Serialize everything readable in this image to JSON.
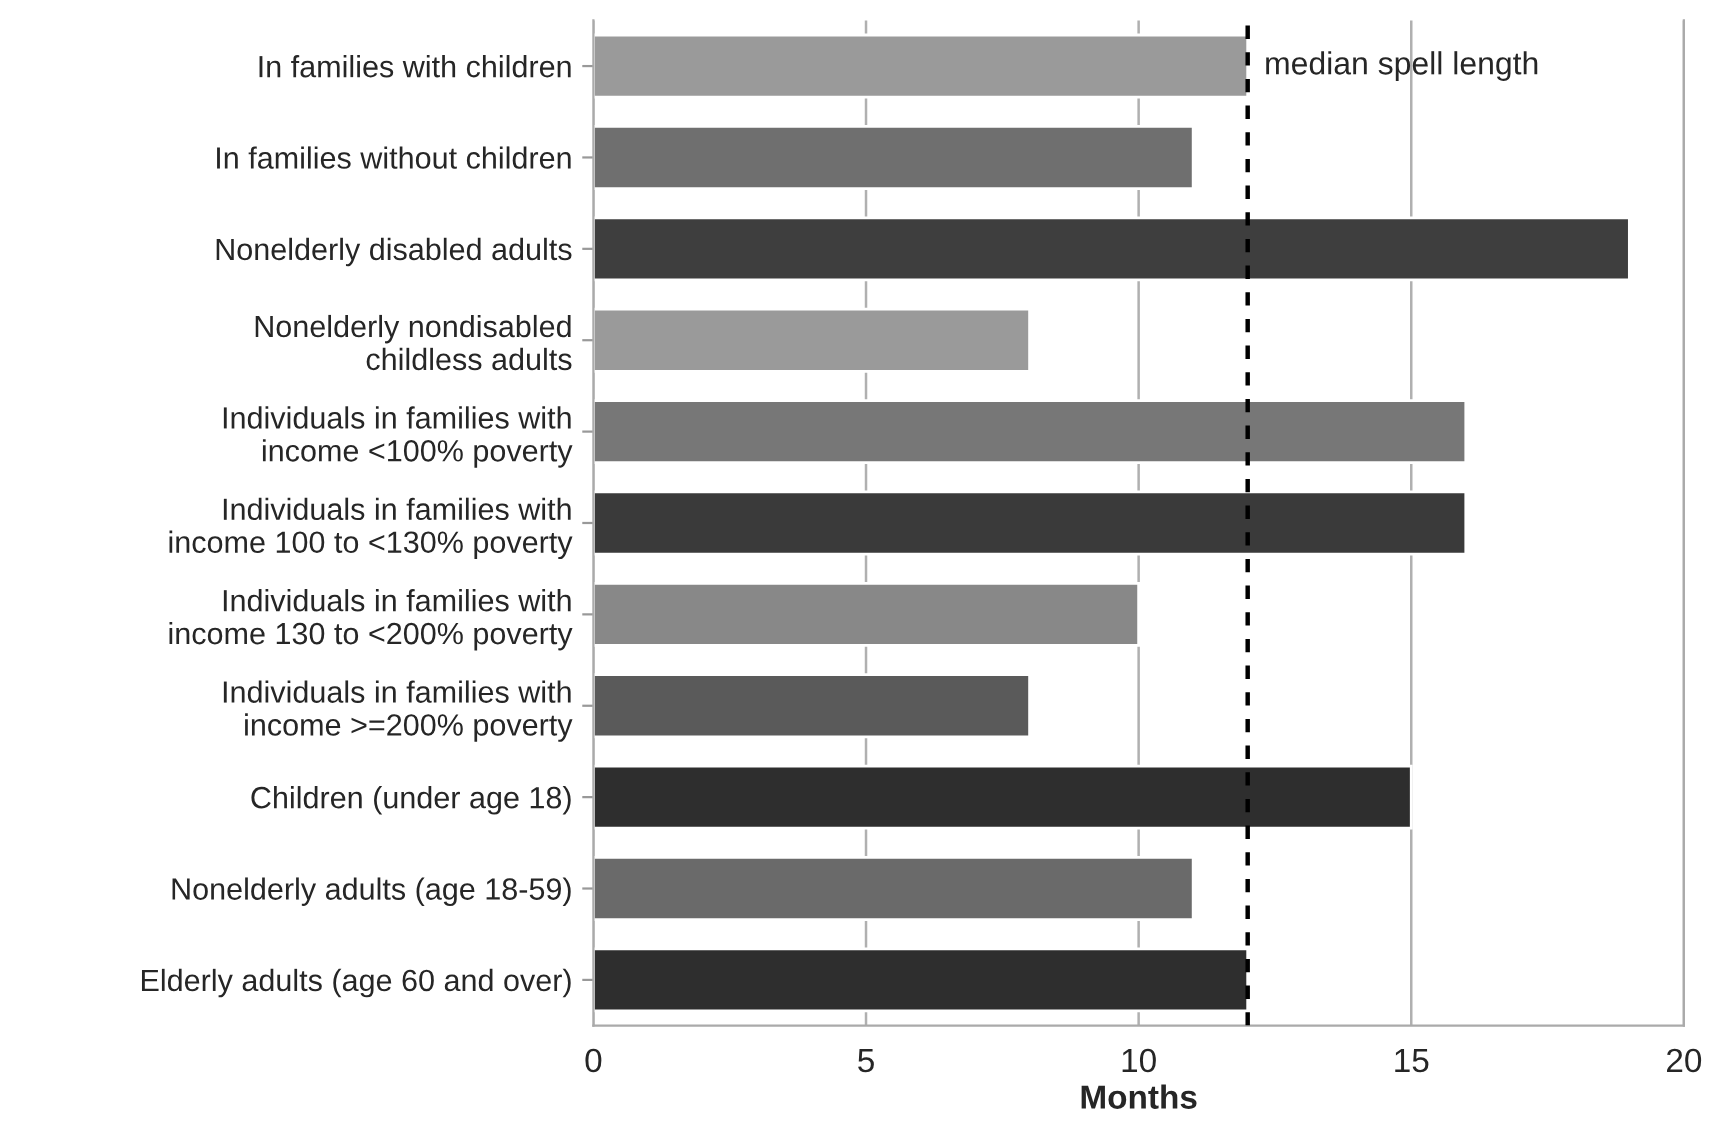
{
  "chart_data": {
    "type": "bar",
    "orientation": "horizontal",
    "xlabel": "Months",
    "categories": [
      "In families with children",
      "In families without children",
      "Nonelderly disabled adults",
      "Nonelderly nondisabled\nchildless adults",
      "Individuals in families with\nincome <100% poverty",
      "Individuals in families with\nincome 100 to <130% poverty",
      "Individuals in families with\nincome 130 to <200% poverty",
      "Individuals in families with\nincome >=200% poverty",
      "Children (under age 18)",
      "Nonelderly adults (age 18-59)",
      "Elderly adults (age 60 and over)"
    ],
    "values": [
      12,
      11,
      19,
      8,
      16,
      16,
      10,
      8,
      15,
      11,
      12
    ],
    "colors": [
      "#9a9a9a",
      "#6f6f6f",
      "#3e3e3e",
      "#9a9a9a",
      "#777777",
      "#3a3a3a",
      "#888888",
      "#5a5a5a",
      "#2e2e2e",
      "#6a6a6a",
      "#2e2e2e"
    ],
    "xlim": [
      0,
      20
    ],
    "xticks": [
      0,
      5,
      10,
      15,
      20
    ],
    "grid": "x",
    "ref_lines": [
      {
        "axis": "x",
        "value": 12,
        "label": "median spell length",
        "color": "#000000",
        "line_style": "dashed"
      }
    ]
  }
}
